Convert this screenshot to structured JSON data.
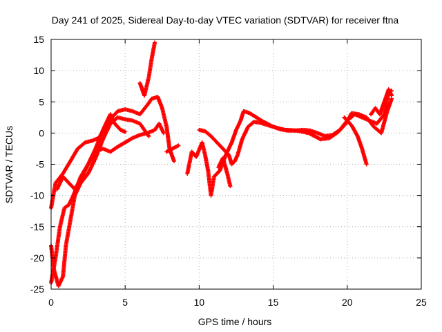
{
  "chart_data": {
    "type": "scatter",
    "title": "Day 241 of 2025, Sidereal Day-to-day VTEC variation (SDTVAR) for receiver ftna",
    "xlabel": "GPS time / hours",
    "ylabel": "SDTVAR / TECUs",
    "xlim": [
      0,
      25
    ],
    "ylim": [
      -25,
      15
    ],
    "xticks": [
      0,
      5,
      10,
      15,
      20,
      25
    ],
    "yticks": [
      -25,
      -20,
      -15,
      -10,
      -5,
      0,
      5,
      10,
      15
    ],
    "grid": true,
    "marker": "+",
    "color": "#ff0000",
    "series": [
      {
        "name": "track-1",
        "points": [
          [
            0.0,
            -12
          ],
          [
            0.3,
            -8
          ],
          [
            0.8,
            -6.5
          ],
          [
            1.3,
            -4.5
          ],
          [
            1.8,
            -2.5
          ],
          [
            2.3,
            -1.5
          ],
          [
            2.8,
            -1.2
          ],
          [
            3.2,
            -0.8
          ],
          [
            3.6,
            0.5
          ],
          [
            4.0,
            2.2
          ],
          [
            4.5,
            3.5
          ],
          [
            5.0,
            3.8
          ],
          [
            5.5,
            3.5
          ],
          [
            6.0,
            3.0
          ],
          [
            6.5,
            4.5
          ],
          [
            6.8,
            5.5
          ],
          [
            7.2,
            5.8
          ],
          [
            7.5,
            4.0
          ],
          [
            7.8,
            1.0
          ],
          [
            8.0,
            -2.5
          ],
          [
            8.3,
            -4.5
          ]
        ]
      },
      {
        "name": "track-2",
        "points": [
          [
            0.0,
            -18
          ],
          [
            0.2,
            -22
          ],
          [
            0.5,
            -24.5
          ],
          [
            0.8,
            -23
          ],
          [
            1.0,
            -18
          ],
          [
            1.3,
            -14
          ],
          [
            1.6,
            -10
          ],
          [
            2.0,
            -8
          ],
          [
            2.5,
            -6.5
          ],
          [
            3.0,
            -4
          ],
          [
            3.5,
            -1
          ],
          [
            4.0,
            1.5
          ],
          [
            4.5,
            2.5
          ],
          [
            5.0,
            2.2
          ],
          [
            5.5,
            2.0
          ],
          [
            6.0,
            1.5
          ],
          [
            6.3,
            0.5
          ],
          [
            6.6,
            -0.5
          ]
        ]
      },
      {
        "name": "track-3",
        "points": [
          [
            0.0,
            -24
          ],
          [
            0.3,
            -20
          ],
          [
            0.6,
            -15
          ],
          [
            0.9,
            -12
          ],
          [
            1.2,
            -11.5
          ],
          [
            1.5,
            -10
          ],
          [
            2.0,
            -7
          ],
          [
            2.5,
            -5
          ],
          [
            3.0,
            -3
          ],
          [
            3.5,
            -2.5
          ],
          [
            4.0,
            -3
          ],
          [
            4.5,
            -2.2
          ],
          [
            5.0,
            -1.5
          ],
          [
            5.5,
            -0.8
          ],
          [
            6.0,
            -0.3
          ],
          [
            6.5,
            0.0
          ],
          [
            7.0,
            0.5
          ],
          [
            7.3,
            1.5
          ],
          [
            7.6,
            0.0
          ]
        ]
      },
      {
        "name": "track-4",
        "points": [
          [
            0.4,
            -9
          ],
          [
            0.8,
            -7
          ],
          [
            1.2,
            -8
          ],
          [
            1.6,
            -9
          ],
          [
            2.0,
            -7.5
          ],
          [
            2.5,
            -5
          ],
          [
            3.0,
            -2.5
          ],
          [
            3.5,
            0.5
          ],
          [
            4.0,
            3.0
          ],
          [
            4.3,
            1.5
          ],
          [
            4.7,
            0.5
          ],
          [
            5.0,
            0.2
          ]
        ]
      },
      {
        "name": "track-5",
        "points": [
          [
            6.0,
            8.0
          ],
          [
            6.3,
            6.0
          ],
          [
            6.6,
            9.0
          ],
          [
            6.8,
            12.0
          ],
          [
            7.0,
            14.5
          ]
        ]
      },
      {
        "name": "track-6",
        "points": [
          [
            7.8,
            -3.0
          ],
          [
            8.2,
            -2.5
          ],
          [
            8.6,
            -2.0
          ]
        ]
      },
      {
        "name": "track-7",
        "points": [
          [
            9.2,
            -6.5
          ],
          [
            9.5,
            -3.0
          ],
          [
            9.8,
            -3.8
          ],
          [
            10.2,
            -1.5
          ],
          [
            10.4,
            -3.5
          ],
          [
            10.6,
            -6.0
          ],
          [
            10.8,
            -10.0
          ],
          [
            11.0,
            -7.0
          ],
          [
            11.4,
            -6.0
          ],
          [
            11.8,
            -3.5
          ],
          [
            12.2,
            -1.5
          ],
          [
            12.5,
            0.5
          ],
          [
            12.8,
            2.0
          ],
          [
            13.0,
            3.5
          ],
          [
            13.4,
            3.2
          ],
          [
            13.8,
            2.6
          ],
          [
            14.2,
            2.0
          ],
          [
            14.6,
            1.5
          ],
          [
            15.0,
            1.0
          ],
          [
            15.5,
            0.6
          ],
          [
            16.0,
            0.4
          ],
          [
            16.5,
            0.4
          ],
          [
            17.0,
            0.5
          ],
          [
            17.5,
            0.4
          ],
          [
            18.0,
            0.0
          ],
          [
            18.5,
            -0.5
          ],
          [
            19.0,
            -0.3
          ],
          [
            19.5,
            0.5
          ],
          [
            20.0,
            2.0
          ],
          [
            20.5,
            3.0
          ],
          [
            21.0,
            2.5
          ],
          [
            21.5,
            2.0
          ],
          [
            22.0,
            1.5
          ],
          [
            22.5,
            3.0
          ],
          [
            22.8,
            6.5
          ],
          [
            23.0,
            6.8
          ]
        ]
      },
      {
        "name": "track-8",
        "points": [
          [
            10.0,
            0.5
          ],
          [
            10.4,
            0.3
          ],
          [
            10.8,
            -0.5
          ],
          [
            11.2,
            -1.5
          ],
          [
            11.6,
            -2.5
          ],
          [
            12.0,
            -3.5
          ],
          [
            12.2,
            -5.0
          ],
          [
            12.4,
            -4.5
          ],
          [
            12.6,
            -3.5
          ],
          [
            12.9,
            -1.0
          ],
          [
            13.3,
            1.0
          ],
          [
            13.7,
            1.8
          ],
          [
            14.2,
            1.6
          ],
          [
            15.0,
            1.0
          ],
          [
            15.8,
            0.5
          ],
          [
            16.6,
            0.4
          ],
          [
            17.4,
            0.0
          ],
          [
            18.2,
            -1.0
          ],
          [
            18.8,
            -0.8
          ],
          [
            19.4,
            0.2
          ],
          [
            19.9,
            1.5
          ],
          [
            20.3,
            3.2
          ],
          [
            20.8,
            3.0
          ],
          [
            21.3,
            2.5
          ],
          [
            21.8,
            1.0
          ],
          [
            22.3,
            0.0
          ],
          [
            22.7,
            3.5
          ],
          [
            23.0,
            5.5
          ]
        ]
      },
      {
        "name": "track-9",
        "points": [
          [
            11.3,
            -5.5
          ],
          [
            11.6,
            -4.0
          ],
          [
            11.9,
            -6.5
          ],
          [
            12.1,
            -8.5
          ]
        ]
      },
      {
        "name": "track-10",
        "points": [
          [
            19.8,
            2.5
          ],
          [
            20.3,
            1.2
          ],
          [
            20.7,
            -0.5
          ],
          [
            21.0,
            -2.5
          ],
          [
            21.3,
            -5.0
          ]
        ]
      },
      {
        "name": "track-11",
        "points": [
          [
            21.6,
            3.0
          ],
          [
            21.9,
            4.0
          ],
          [
            22.2,
            3.0
          ],
          [
            22.5,
            5.0
          ],
          [
            22.8,
            7.0
          ],
          [
            23.0,
            6.0
          ]
        ]
      }
    ]
  }
}
